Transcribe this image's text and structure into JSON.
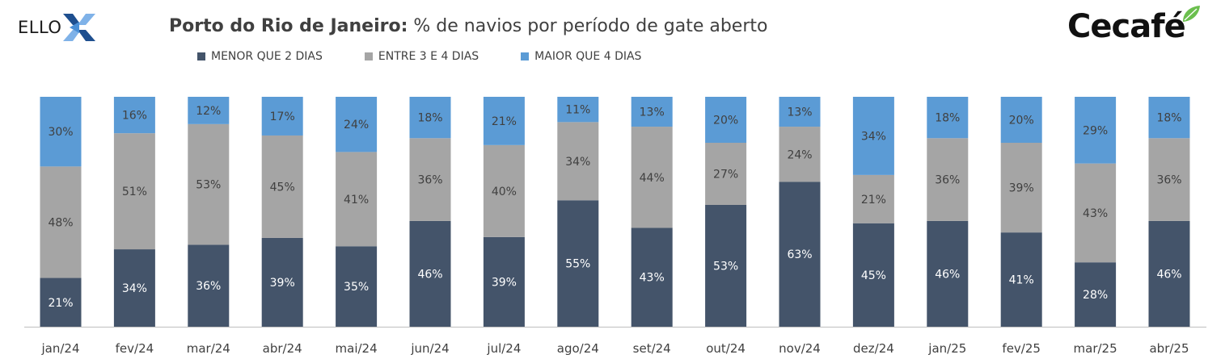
{
  "header": {
    "brand_left": "ELLO",
    "title_bold": "Porto do Rio de Janeiro:",
    "title_rest": " % de navios por período de gate aberto",
    "brand_right": "Cecafé"
  },
  "colors": {
    "menor": "#44546A",
    "entre": "#A5A5A5",
    "maior": "#5B9BD5",
    "ello_accent": "#4A8FD6",
    "cecafe_leaf": "#6BBF4E"
  },
  "chart_data": {
    "type": "bar",
    "stacked": true,
    "categories": [
      "jan/24",
      "fev/24",
      "mar/24",
      "abr/24",
      "mai/24",
      "jun/24",
      "jul/24",
      "ago/24",
      "set/24",
      "out/24",
      "nov/24",
      "dez/24",
      "jan/25",
      "fev/25",
      "mar/25",
      "abr/25"
    ],
    "series": [
      {
        "name": "MENOR QUE 2 DIAS",
        "color": "#44546A",
        "values": [
          21,
          34,
          36,
          39,
          35,
          46,
          39,
          55,
          43,
          53,
          63,
          45,
          46,
          41,
          28,
          46
        ]
      },
      {
        "name": "ENTRE 3 E 4 DIAS",
        "color": "#A5A5A5",
        "values": [
          48,
          51,
          53,
          45,
          41,
          36,
          40,
          34,
          44,
          27,
          24,
          21,
          36,
          39,
          43,
          36
        ]
      },
      {
        "name": "MAIOR QUE 4 DIAS",
        "color": "#5B9BD5",
        "values": [
          30,
          16,
          12,
          17,
          24,
          18,
          21,
          11,
          13,
          20,
          13,
          34,
          18,
          20,
          29,
          18
        ]
      }
    ],
    "value_suffix": "%",
    "legend_position": "top",
    "grid": false
  }
}
